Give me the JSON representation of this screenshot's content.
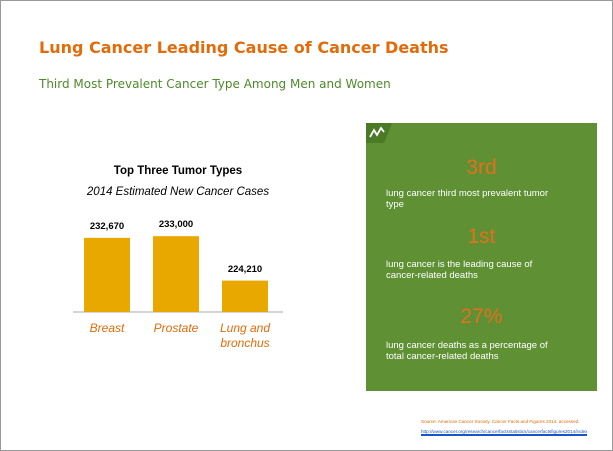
{
  "header": {
    "title": "Lung Cancer Leading Cause of Cancer Deaths",
    "subtitle": "Third Most Prevalent Cancer Type Among Men and Women"
  },
  "chart_data": {
    "type": "bar",
    "title": "Top Three Tumor Types",
    "subtitle": "2014 Estimated New Cancer Cases",
    "categories": [
      "Breast",
      "Prostate",
      "Lung and bronchus"
    ],
    "values": [
      232670,
      233000,
      224210
    ],
    "value_labels": [
      "232,670",
      "233,000",
      "224,210"
    ],
    "color": "#e8a800",
    "ylim": [
      218000,
      236000
    ]
  },
  "stats": [
    {
      "value": "3rd",
      "text": "lung cancer third most prevalent tumor type"
    },
    {
      "value": "1st",
      "text": "lung cancer is the leading cause of cancer-related deaths"
    },
    {
      "value": "27%",
      "text": "lung cancer deaths as a percentage of total cancer-related deaths"
    }
  ],
  "source": {
    "text": "Source: American Cancer Society. Cancer Facts and Figures 2014. accessed:",
    "url": "http://www.cancer.org/research/cancerfactsstatistics/cancerfactsfigures2014/index"
  }
}
